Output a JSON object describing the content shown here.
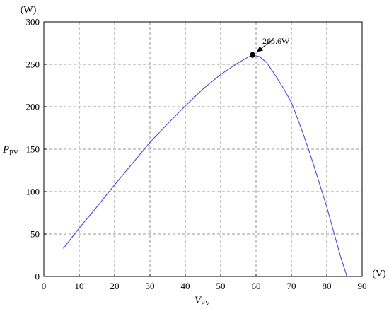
{
  "chart_data": {
    "type": "line",
    "x_unit": "(V)",
    "y_unit": "(W)",
    "xlabel_main": "V",
    "xlabel_sub": "PV",
    "ylabel_main": "P",
    "ylabel_sub": "PV",
    "xlim": [
      0,
      90
    ],
    "ylim": [
      0,
      300
    ],
    "x_ticks": [
      0,
      10,
      20,
      30,
      40,
      50,
      60,
      70,
      80,
      90
    ],
    "y_ticks": [
      0,
      50,
      100,
      150,
      200,
      250,
      300
    ],
    "grid": true,
    "series": [
      {
        "color": "#4a4ae0",
        "points": [
          [
            5.5,
            33
          ],
          [
            10,
            57
          ],
          [
            15,
            82
          ],
          [
            20,
            108
          ],
          [
            25,
            133
          ],
          [
            30,
            158
          ],
          [
            35,
            180
          ],
          [
            40,
            201
          ],
          [
            45,
            221
          ],
          [
            50,
            238
          ],
          [
            55,
            252
          ],
          [
            58,
            259
          ],
          [
            59,
            261
          ],
          [
            61,
            259
          ],
          [
            63,
            252
          ],
          [
            65,
            240
          ],
          [
            68,
            220
          ],
          [
            70,
            205
          ],
          [
            73,
            172
          ],
          [
            75,
            148
          ],
          [
            77,
            122
          ],
          [
            80,
            82
          ],
          [
            82,
            52
          ],
          [
            84,
            22
          ],
          [
            85.5,
            3
          ],
          [
            85.6,
            0
          ]
        ]
      }
    ],
    "annotation": {
      "text": "265.6W",
      "x": 59,
      "y": 261
    }
  }
}
